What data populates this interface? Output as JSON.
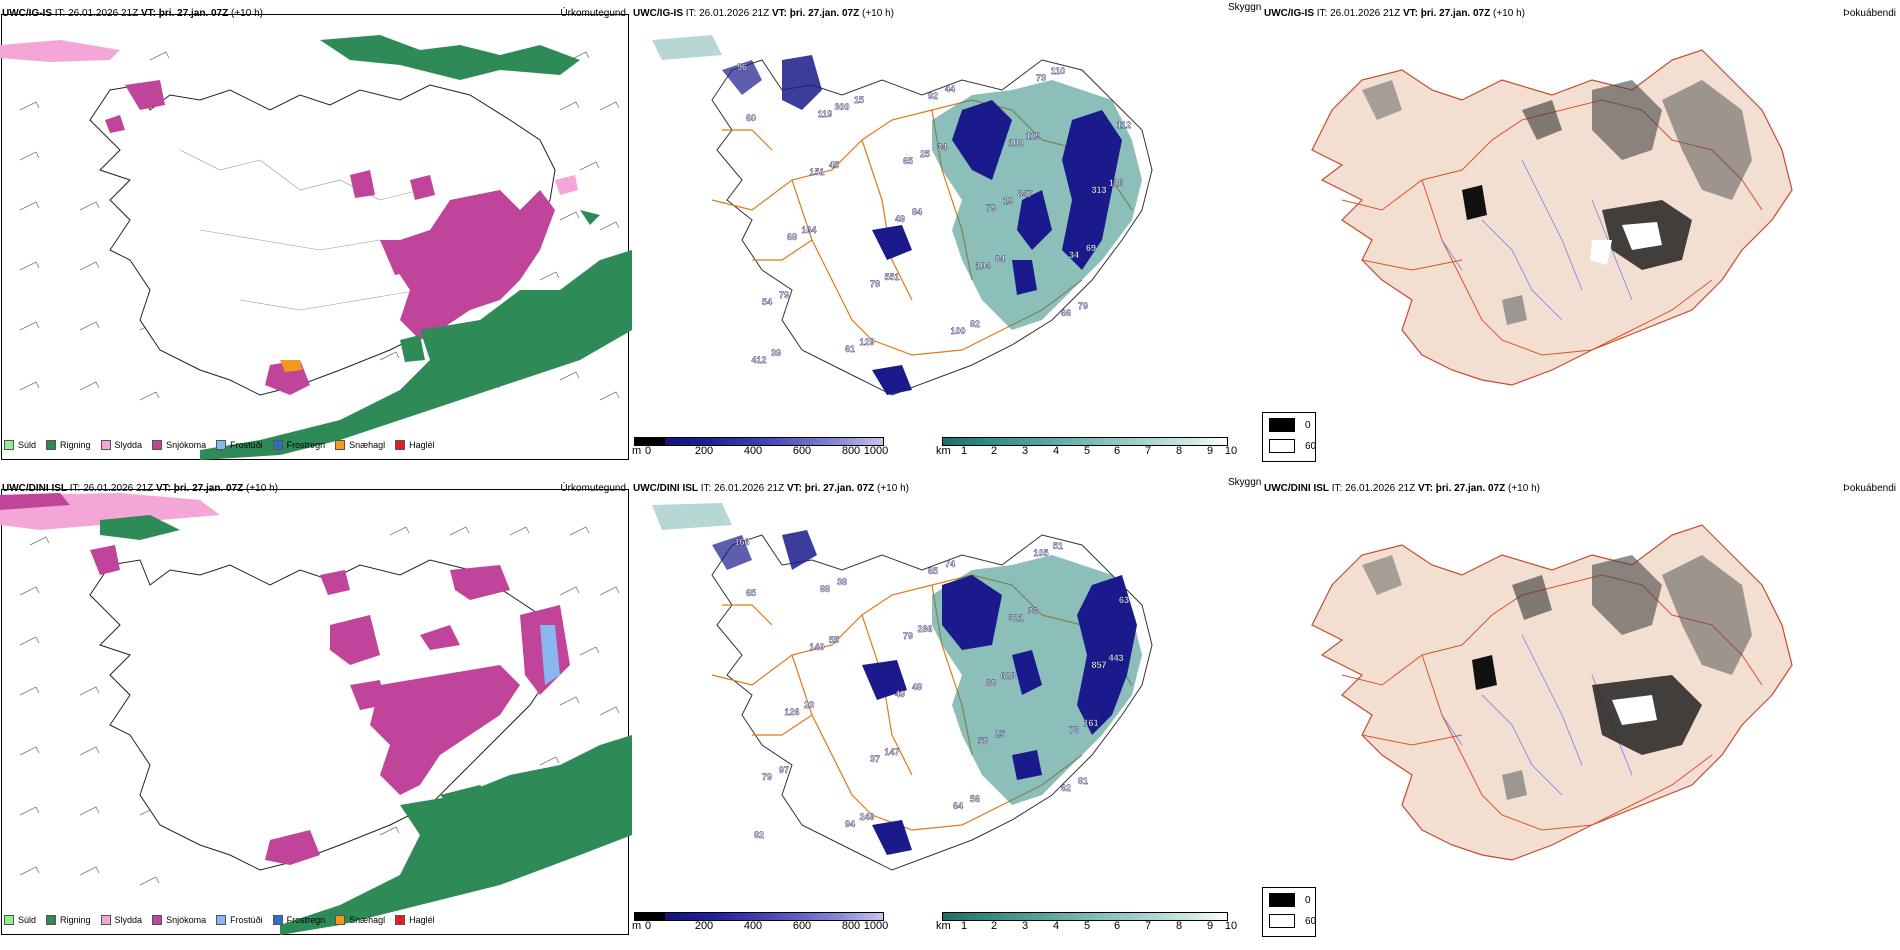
{
  "rows": [
    {
      "model": "UWC/IG-IS",
      "it_label": "IT:",
      "it_value": "26.01.2026 21Z",
      "vt_label": "VT:",
      "vt_value": "þri. 27.jan. 07Z",
      "lead": "(+10 h)",
      "precip_title": "Úrkomutegund",
      "vis_title": "Skyggni",
      "fog_title": "Þokuábendi",
      "station_values": [
        "96",
        "119",
        "65",
        "79",
        "34",
        "54",
        "61",
        "92",
        "102",
        "313",
        "68",
        "78",
        "100",
        "73",
        "112",
        "151",
        "49",
        "104",
        "66",
        "412",
        "300",
        "25",
        "19",
        "69",
        "79",
        "129",
        "44",
        "119",
        "116",
        "164",
        "551",
        "82",
        "110",
        "60",
        "45",
        "84",
        "84",
        "79",
        "39",
        "15",
        "34",
        "847"
      ]
    },
    {
      "model": "UWC/DINI ISL",
      "it_label": "IT:",
      "it_value": "26.01.2026 21Z",
      "vt_label": "VT:",
      "vt_value": "þri. 27.jan. 07Z",
      "lead": "(+10 h)",
      "precip_title": "Úrkomutegund",
      "vis_title": "Skyggni",
      "fog_title": "Þokuábendi",
      "station_values": [
        "166",
        "88",
        "79",
        "68",
        "76",
        "79",
        "94",
        "65",
        "321",
        "857",
        "126",
        "37",
        "64",
        "105",
        "63",
        "140",
        "49",
        "58",
        "62",
        "82",
        "38",
        "286",
        "628",
        "161",
        "97",
        "249",
        "74",
        "36",
        "443",
        "23",
        "147",
        "56",
        "51",
        "65",
        "55",
        "48",
        "25",
        "81"
      ]
    }
  ],
  "precip_legend": [
    {
      "label": "Súld",
      "color": "#90ee90"
    },
    {
      "label": "Rigning",
      "color": "#2e8b57"
    },
    {
      "label": "Slydda",
      "color": "#f4a6d7"
    },
    {
      "label": "Snjókoma",
      "color": "#c0449a"
    },
    {
      "label": "Frostúði",
      "color": "#87b7ec"
    },
    {
      "label": "Frostregn",
      "color": "#2e6fc4"
    },
    {
      "label": "Snæhagl",
      "color": "#f39a1c"
    },
    {
      "label": "Haglél",
      "color": "#e02020"
    }
  ],
  "terrain_bar": {
    "unit": "m",
    "ticks": [
      "0",
      "200",
      "400",
      "600",
      "800",
      "1000"
    ]
  },
  "cloud_bar": {
    "unit": "km",
    "ticks": [
      "1",
      "2",
      "3",
      "4",
      "5",
      "6",
      "7",
      "8",
      "9",
      "10"
    ]
  },
  "fog_legend": {
    "black_label": "0",
    "white_label": "60"
  },
  "colors": {
    "rain": "#2e8b57",
    "snow": "#c0449a",
    "sleet": "#f4a6d7",
    "drizzle": "#90ee90",
    "frz_drizzle": "#87b7ec",
    "frz_rain": "#2e6fc4",
    "ice_pellets": "#f39a1c",
    "hail": "#e02020",
    "terrain_dark": "#1a1a8c",
    "terrain_mid": "#4a4ab0",
    "cloud_teal": "#2e8b80",
    "road": "#e07a1a",
    "land_fog": "#f3dfd2",
    "river": "#6f7ff0"
  }
}
